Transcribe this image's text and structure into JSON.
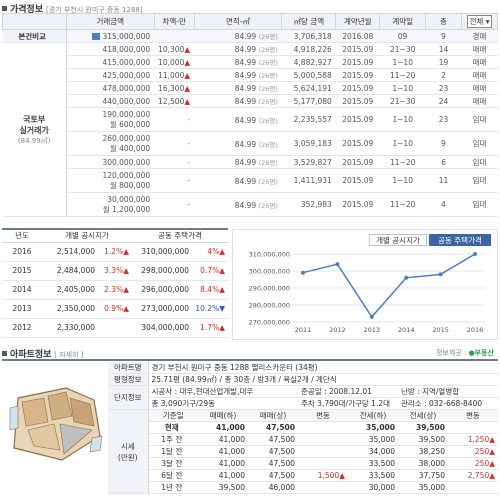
{
  "section1": {
    "title": "가격정보",
    "subtitle": "[경기 부천시 원미구 중동 1288]"
  },
  "price_table": {
    "headers": [
      "거래금액",
      "차액-만",
      "면적-㎡",
      "㎡당 금액",
      "계약년월",
      "계약일",
      "층",
      "전체"
    ],
    "compare_label": "본건비교",
    "compare_row": {
      "amount": "315,000,000",
      "diff": "",
      "area": "84.99",
      "area_tag": "(26평)",
      "per_m2": "3,706,318",
      "ym": "2016.08",
      "day": "09",
      "floor": "9",
      "type": "경매"
    },
    "side_label": [
      "국토부",
      "실거래가"
    ],
    "side_sub": "(84.99㎡)",
    "rows": [
      {
        "amount": "418,000,000",
        "diff": "10,300",
        "diff_dir": "▲",
        "area": "84.99",
        "area_tag": "(26평)",
        "per_m2": "4,918,226",
        "ym": "2015.09",
        "day": "21~30",
        "floor": "14",
        "type": "매매"
      },
      {
        "amount": "415,000,000",
        "diff": "10,000",
        "diff_dir": "▲",
        "area": "84.99",
        "area_tag": "(26평)",
        "per_m2": "4,882,927",
        "ym": "2015.09",
        "day": "1~10",
        "floor": "19",
        "type": "매매"
      },
      {
        "amount": "425,000,000",
        "diff": "11,000",
        "diff_dir": "▲",
        "area": "84.99",
        "area_tag": "(26평)",
        "per_m2": "5,000,588",
        "ym": "2015.09",
        "day": "11~20",
        "floor": "2",
        "type": "매매"
      },
      {
        "amount": "478,000,000",
        "diff": "16,300",
        "diff_dir": "▲",
        "area": "84.99",
        "area_tag": "(26평)",
        "per_m2": "5,624,191",
        "ym": "2015.09",
        "day": "1~10",
        "floor": "23",
        "type": "매매"
      },
      {
        "amount": "440,000,000",
        "diff": "12,500",
        "diff_dir": "▲",
        "area": "84.99",
        "area_tag": "(26평)",
        "per_m2": "5,177,080",
        "ym": "2015.09",
        "day": "21~30",
        "floor": "24",
        "type": "매매"
      },
      {
        "amount": "190,000,000",
        "amount2": "월 600,000",
        "diff": "",
        "area": "84.99",
        "area_tag": "(26평)",
        "per_m2": "2,235,557",
        "ym": "2015.09",
        "day": "1~10",
        "floor": "23",
        "type": "임대"
      },
      {
        "amount": "260,000,000",
        "amount2": "월 400,000",
        "diff": "",
        "area": "84.99",
        "area_tag": "(26평)",
        "per_m2": "3,059,183",
        "ym": "2015.09",
        "day": "1~10",
        "floor": "9",
        "type": "임대"
      },
      {
        "amount": "300,000,000",
        "diff": "",
        "area": "84.99",
        "area_tag": "(26평)",
        "per_m2": "3,529,827",
        "ym": "2015.09",
        "day": "11~20",
        "floor": "6",
        "type": "임대"
      },
      {
        "amount": "120,000,000",
        "amount2": "월 800,000",
        "diff": "",
        "area": "84.99",
        "area_tag": "(26평)",
        "per_m2": "1,411,931",
        "ym": "2015.09",
        "day": "1~10",
        "floor": "11",
        "type": "임대"
      },
      {
        "amount": "30,000,000",
        "amount2": "월 1,200,000",
        "diff": "",
        "area": "84.99",
        "area_tag": "(26평)",
        "per_m2": "352,983",
        "ym": "2015.09",
        "day": "11~20",
        "floor": "4",
        "type": "임대"
      }
    ]
  },
  "pub_table": {
    "headers": [
      "년도",
      "개별 공시지가",
      "공동 주택가격"
    ],
    "rows": [
      {
        "year": "2016",
        "land": "2,514,000",
        "land_pct": "1.2%",
        "land_dir": "▲",
        "house": "310,000,000",
        "house_pct": "4%",
        "house_dir": "▲"
      },
      {
        "year": "2015",
        "land": "2,484,000",
        "land_pct": "3.3%",
        "land_dir": "▲",
        "house": "298,000,000",
        "house_pct": "0.7%",
        "house_dir": "▲"
      },
      {
        "year": "2014",
        "land": "2,405,000",
        "land_pct": "2.3%",
        "land_dir": "▲",
        "house": "296,000,000",
        "house_pct": "8.4%",
        "house_dir": "▲"
      },
      {
        "year": "2013",
        "land": "2,350,000",
        "land_pct": "0.9%",
        "land_dir": "▲",
        "house": "273,000,000",
        "house_pct": "10.2%",
        "house_dir": "▼"
      },
      {
        "year": "2012",
        "land": "2,330,000",
        "land_pct": "",
        "land_dir": "",
        "house": "304,000,000",
        "house_pct": "1.7%",
        "house_dir": "▲"
      }
    ]
  },
  "chart_tabs": [
    "개별 공시지가",
    "공동 주택가격"
  ],
  "chart_data": {
    "type": "line",
    "x": [
      "2011",
      "2012",
      "2013",
      "2014",
      "2015",
      "2016"
    ],
    "series": [
      {
        "values": [
          299000000,
          304000000,
          273000000,
          296000000,
          298000000,
          310000000
        ]
      }
    ],
    "ytick_labels": [
      "270,000,000",
      "280,000,000",
      "290,000,000",
      "300,000,000",
      "310,000,000"
    ],
    "ylim": [
      270000000,
      310000000
    ],
    "color": "#4a7ec4"
  },
  "section2": {
    "title": "아파트정보",
    "sub": "[ 자세히 ]",
    "right_note": "정보제공 : ",
    "brand": "부동산"
  },
  "apt": {
    "name_label": "아파트명",
    "name_value": "경기 부천시 원미구 중동 1288 팰리스카운티 (34평)",
    "type_label": "평형정보",
    "type_value": "25.71평 (84.99㎡) / 총 30층 / 방3개 / 욕실2개 / 계단식",
    "site_label": "단지정보",
    "builder": "시공사 : 대우,현대산업개발,대우",
    "built": "준공일 : 2008.12.01",
    "heat": "난방 : 지역/열병합",
    "households": "총 3,090기구/29동",
    "parking": "주차 3,790대/가구당 1.2대",
    "office": "관리소 : 032-668-8400",
    "price_label": [
      "시세",
      "(만원)"
    ],
    "price_headers": [
      "기준일",
      "매매(하)",
      "매매(상)",
      "변동",
      "전세(하)",
      "전세(상)",
      "변동"
    ],
    "price_rows": [
      {
        "date": "현재",
        "s_lo": "41,000",
        "s_hi": "47,500",
        "s_chg": "",
        "j_lo": "35,000",
        "j_hi": "39,500",
        "j_chg": "",
        "bold": true
      },
      {
        "date": "1주 전",
        "s_lo": "41,000",
        "s_hi": "47,500",
        "s_chg": "",
        "j_lo": "35,000",
        "j_hi": "39,500",
        "j_chg": "1,250▲"
      },
      {
        "date": "1달 전",
        "s_lo": "41,000",
        "s_hi": "47,500",
        "s_chg": "",
        "j_lo": "34,000",
        "j_hi": "38,250",
        "j_chg": "250▲"
      },
      {
        "date": "3달 전",
        "s_lo": "41,000",
        "s_hi": "47,500",
        "s_chg": "",
        "j_lo": "33,500",
        "j_hi": "38,000",
        "j_chg": "250▲"
      },
      {
        "date": "6달 전",
        "s_lo": "41,000",
        "s_hi": "47,500",
        "s_chg": "1,500▲",
        "j_lo": "33,500",
        "j_hi": "37,750",
        "j_chg": "2,750▲"
      },
      {
        "date": "1년 전",
        "s_lo": "39,500",
        "s_hi": "46,000",
        "s_chg": "",
        "j_lo": "30,000",
        "j_hi": "35,000",
        "j_chg": ""
      }
    ]
  }
}
